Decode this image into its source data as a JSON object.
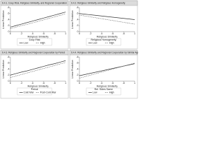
{
  "chart_data": [
    {
      "type": "line",
      "title": "6.4.1. Coup Risk, Religious Similarity, and Regional Cooperation",
      "xlabel": "Religious Similarity",
      "ylabel": "Linear Prediction",
      "legend_title": "Coup Risk",
      "x": [
        0,
        0.1,
        0.2,
        0.3,
        0.4,
        0.5,
        0.6,
        0.7,
        0.8,
        0.9,
        1
      ],
      "series": [
        {
          "name": "Low",
          "color": "#333333",
          "dash": false,
          "values": [
            0.15,
            0.2,
            0.25,
            0.3,
            0.35,
            0.4,
            0.45,
            0.5,
            0.55,
            0.6,
            0.65
          ]
        },
        {
          "name": "High",
          "color": "#777777",
          "dash": true,
          "values": [
            0.1,
            0.15,
            0.2,
            0.24,
            0.29,
            0.34,
            0.39,
            0.44,
            0.49,
            0.54,
            0.59
          ]
        }
      ],
      "xlim": [
        0,
        1
      ],
      "xticks": [
        0,
        {
          "value": 0.2,
          "label": ".2"
        },
        {
          "value": 0.4,
          "label": ".4"
        },
        {
          "value": 0.6,
          "label": ".6"
        },
        {
          "value": 0.8,
          "label": ".8"
        },
        1
      ],
      "ylim": [
        0,
        0.8
      ],
      "yticks": [
        0,
        {
          "value": 0.2,
          "label": ".2"
        },
        {
          "value": 0.4,
          "label": ".4"
        },
        {
          "value": 0.6,
          "label": ".6"
        },
        {
          "value": 0.8,
          "label": ".8"
        }
      ]
    },
    {
      "type": "line",
      "title": "6.4.2. Religious Similarity and Religious Homogeneity",
      "xlabel": "Religious Similarity",
      "ylabel": "Linear Prediction",
      "legend_title": "Religious Homogeneity",
      "x": [
        0,
        0.1,
        0.2,
        0.3,
        0.4,
        0.5,
        0.6,
        0.7,
        0.8,
        0.9,
        1
      ],
      "series": [
        {
          "name": "Low",
          "color": "#333333",
          "dash": false,
          "values": [
            0.6,
            0.58,
            0.56,
            0.54,
            0.52,
            0.5,
            0.48,
            0.46,
            0.44,
            0.42,
            0.4
          ]
        },
        {
          "name": "High",
          "color": "#777777",
          "dash": true,
          "values": [
            0.55,
            0.52,
            0.49,
            0.46,
            0.43,
            0.4,
            0.37,
            0.34,
            0.31,
            0.28,
            0.25
          ]
        }
      ],
      "xlim": [
        0,
        1
      ],
      "xticks": [
        0,
        {
          "value": 0.2,
          "label": ".2"
        },
        {
          "value": 0.4,
          "label": ".4"
        },
        {
          "value": 0.6,
          "label": ".6"
        },
        {
          "value": 0.8,
          "label": ".8"
        },
        1
      ],
      "ylim": [
        0,
        0.8
      ],
      "yticks": [
        0,
        {
          "value": 0.2,
          "label": ".2"
        },
        {
          "value": 0.4,
          "label": ".4"
        },
        {
          "value": 0.6,
          "label": ".6"
        },
        {
          "value": 0.8,
          "label": ".8"
        }
      ]
    },
    {
      "type": "line",
      "title": "6.4.3. Religious Similarity and Regional Cooperation by Period",
      "xlabel": "Religious Similarity",
      "ylabel": "Linear Prediction",
      "legend_title": "Period",
      "x": [
        0,
        0.1,
        0.2,
        0.3,
        0.4,
        0.5,
        0.6,
        0.7,
        0.8,
        0.9,
        1
      ],
      "series": [
        {
          "name": "Cold War",
          "color": "#333333",
          "dash": false,
          "values": [
            0.2,
            0.25,
            0.3,
            0.34,
            0.39,
            0.44,
            0.49,
            0.54,
            0.58,
            0.63,
            0.68
          ]
        },
        {
          "name": "Post-Cold War",
          "color": "#777777",
          "dash": true,
          "values": [
            0.12,
            0.17,
            0.22,
            0.27,
            0.32,
            0.37,
            0.42,
            0.47,
            0.52,
            0.57,
            0.62
          ]
        }
      ],
      "xlim": [
        0,
        1
      ],
      "xticks": [
        0,
        {
          "value": 0.2,
          "label": ".2"
        },
        {
          "value": 0.4,
          "label": ".4"
        },
        {
          "value": 0.6,
          "label": ".6"
        },
        {
          "value": 0.8,
          "label": ".8"
        },
        1
      ],
      "ylim": [
        0,
        0.8
      ],
      "yticks": [
        0,
        {
          "value": 0.2,
          "label": ".2"
        },
        {
          "value": 0.4,
          "label": ".4"
        },
        {
          "value": 0.6,
          "label": ".6"
        },
        {
          "value": 0.8,
          "label": ".8"
        }
      ]
    },
    {
      "type": "line",
      "title": "6.4.4. Religious Similarity and Regional Cooperation by Similar Ages",
      "xlabel": "Religious Similarity",
      "ylabel": "Linear Prediction",
      "legend_title": "Rel. Sides Same",
      "x": [
        0,
        0.1,
        0.2,
        0.3,
        0.4,
        0.5,
        0.6,
        0.7,
        0.8,
        0.9,
        1
      ],
      "series": [
        {
          "name": "Low",
          "color": "#333333",
          "dash": false,
          "values": [
            0.18,
            0.22,
            0.26,
            0.3,
            0.34,
            0.38,
            0.42,
            0.46,
            0.5,
            0.54,
            0.58
          ]
        },
        {
          "name": "High",
          "color": "#777777",
          "dash": true,
          "values": [
            0.1,
            0.15,
            0.2,
            0.25,
            0.3,
            0.35,
            0.4,
            0.45,
            0.5,
            0.55,
            0.6
          ]
        }
      ],
      "xlim": [
        0,
        1
      ],
      "xticks": [
        0,
        {
          "value": 0.2,
          "label": ".2"
        },
        {
          "value": 0.4,
          "label": ".4"
        },
        {
          "value": 0.6,
          "label": ".6"
        },
        {
          "value": 0.8,
          "label": ".8"
        },
        1
      ],
      "ylim": [
        0,
        0.8
      ],
      "yticks": [
        0,
        {
          "value": 0.2,
          "label": ".2"
        },
        {
          "value": 0.4,
          "label": ".4"
        },
        {
          "value": 0.6,
          "label": ".6"
        },
        {
          "value": 0.8,
          "label": ".8"
        }
      ]
    }
  ]
}
